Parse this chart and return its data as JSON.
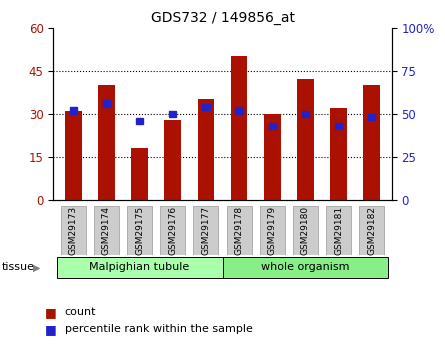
{
  "title": "GDS732 / 149856_at",
  "samples": [
    "GSM29173",
    "GSM29174",
    "GSM29175",
    "GSM29176",
    "GSM29177",
    "GSM29178",
    "GSM29179",
    "GSM29180",
    "GSM29181",
    "GSM29182"
  ],
  "count": [
    31,
    40,
    18,
    28,
    35,
    50,
    30,
    42,
    32,
    40
  ],
  "percentile": [
    52,
    56,
    46,
    50,
    54,
    52,
    43,
    50,
    43,
    48
  ],
  "bar_color": "#aa1100",
  "blue_color": "#2222cc",
  "left_ylim": [
    0,
    60
  ],
  "right_ylim": [
    0,
    100
  ],
  "left_yticks": [
    0,
    15,
    30,
    45,
    60
  ],
  "right_yticks": [
    0,
    25,
    50,
    75,
    100
  ],
  "right_yticklabels": [
    "0",
    "25",
    "50",
    "75",
    "100%"
  ],
  "tissue_groups": [
    {
      "label": "Malpighian tubule",
      "start": 0,
      "end": 4,
      "color": "#aaffaa"
    },
    {
      "label": "whole organism",
      "start": 5,
      "end": 9,
      "color": "#88ee88"
    }
  ],
  "legend_count_label": "count",
  "legend_pct_label": "percentile rank within the sample",
  "tissue_label": "tissue",
  "background_color": "#ffffff",
  "grid_color": "#000000",
  "dotted_gridlines": [
    15,
    30,
    45
  ]
}
